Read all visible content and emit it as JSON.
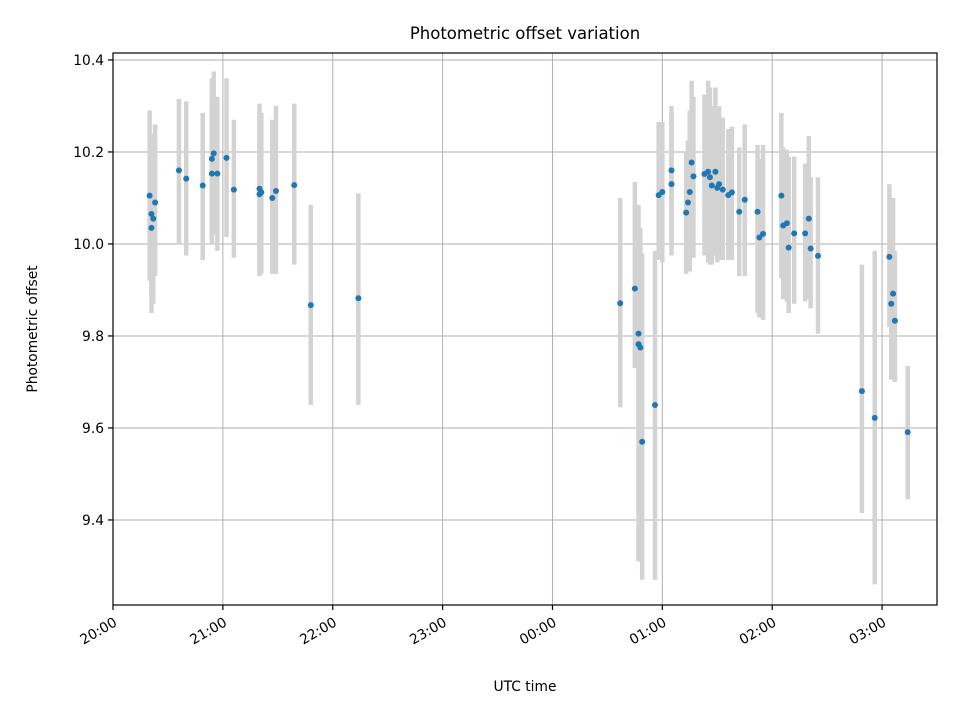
{
  "chart_data": {
    "type": "scatter",
    "title": "Photometric offset variation",
    "xlabel": "UTC time",
    "ylabel": "Photometric offset",
    "x_axis": {
      "ticks": [
        "20:00",
        "21:00",
        "22:00",
        "23:00",
        "00:00",
        "01:00",
        "02:00",
        "03:00"
      ],
      "tick_minutes": [
        0,
        60,
        120,
        180,
        240,
        300,
        360,
        420
      ],
      "range_minutes": [
        0,
        450
      ]
    },
    "y_axis": {
      "ticks": [
        "9.4",
        "9.6",
        "9.8",
        "10.0",
        "10.2",
        "10.4"
      ],
      "tick_values": [
        9.4,
        9.6,
        9.8,
        10.0,
        10.2,
        10.4
      ],
      "range": [
        9.2151,
        10.4151
      ]
    },
    "grid": true,
    "colors": {
      "points": "#1f77b4",
      "errorbars": "#d3d3d3",
      "grid": "#b0b0b0"
    },
    "series": [
      {
        "x": [
          "20:20",
          "20:21",
          "20:21",
          "20:22",
          "20:23",
          "20:36",
          "20:40",
          "20:49",
          "20:54",
          "20:54",
          "20:55",
          "20:57",
          "21:02",
          "21:06",
          "21:20",
          "21:20",
          "21:21",
          "21:27",
          "21:29",
          "21:39",
          "21:48",
          "22:14",
          "00:37",
          "00:45",
          "00:47",
          "00:47",
          "00:48",
          "00:49",
          "00:56",
          "00:58",
          "01:00",
          "01:05",
          "01:05",
          "01:13",
          "01:14",
          "01:15",
          "01:16",
          "01:17",
          "01:23",
          "01:25",
          "01:26",
          "01:27",
          "01:29",
          "01:30",
          "01:31",
          "01:33",
          "01:36",
          "01:38",
          "01:42",
          "01:45",
          "01:52",
          "01:53",
          "01:55",
          "02:05",
          "02:06",
          "02:08",
          "02:09",
          "02:12",
          "02:18",
          "02:20",
          "02:21",
          "02:25",
          "02:49",
          "02:56",
          "03:04",
          "03:05",
          "03:06",
          "03:07",
          "03:14"
        ],
        "y": [
          10.105,
          10.035,
          10.065,
          10.055,
          10.09,
          10.16,
          10.142,
          10.127,
          10.153,
          10.185,
          10.197,
          10.153,
          10.187,
          10.118,
          10.12,
          10.108,
          10.112,
          10.1,
          10.115,
          10.128,
          9.867,
          9.882,
          9.871,
          9.903,
          9.805,
          9.782,
          9.775,
          9.57,
          9.65,
          10.106,
          10.113,
          10.13,
          10.16,
          10.068,
          10.09,
          10.113,
          10.177,
          10.147,
          10.152,
          10.157,
          10.145,
          10.127,
          10.157,
          10.122,
          10.13,
          10.118,
          10.106,
          10.112,
          10.07,
          10.096,
          10.07,
          10.014,
          10.022,
          10.105,
          10.04,
          10.045,
          9.992,
          10.023,
          10.023,
          10.055,
          9.99,
          9.974,
          9.68,
          9.622,
          9.972,
          9.87,
          9.892,
          9.833,
          9.591
        ],
        "err_low": [
          9.92,
          9.85,
          9.89,
          9.87,
          9.93,
          10.0,
          9.975,
          9.965,
          10.0,
          10.01,
          10.02,
          9.985,
          10.015,
          9.97,
          9.93,
          9.935,
          9.935,
          9.935,
          9.935,
          9.955,
          9.65,
          9.65,
          9.645,
          9.73,
          9.58,
          9.31,
          9.31,
          9.27,
          9.27,
          9.965,
          9.96,
          9.975,
          9.995,
          9.935,
          9.95,
          9.94,
          10.0,
          9.97,
          9.975,
          9.96,
          9.955,
          9.955,
          9.975,
          9.96,
          9.965,
          9.965,
          9.965,
          9.965,
          9.93,
          9.93,
          9.85,
          9.84,
          9.835,
          9.925,
          9.88,
          9.875,
          9.85,
          9.87,
          9.875,
          9.88,
          9.86,
          9.805,
          9.415,
          9.26,
          9.82,
          9.705,
          9.72,
          9.7,
          9.445
        ],
        "err_high": [
          10.29,
          10.22,
          10.24,
          10.24,
          10.26,
          10.315,
          10.31,
          10.285,
          10.31,
          10.36,
          10.375,
          10.32,
          10.36,
          10.27,
          10.305,
          10.29,
          10.285,
          10.27,
          10.3,
          10.305,
          10.085,
          10.11,
          10.1,
          10.135,
          10.085,
          10.03,
          10.035,
          9.98,
          9.985,
          10.265,
          10.265,
          10.285,
          10.3,
          10.2,
          10.225,
          10.29,
          10.355,
          10.32,
          10.325,
          10.355,
          10.34,
          10.3,
          10.34,
          10.29,
          10.3,
          10.275,
          10.25,
          10.255,
          10.21,
          10.26,
          10.215,
          10.185,
          10.215,
          10.285,
          10.21,
          10.205,
          10.19,
          10.19,
          10.175,
          10.235,
          10.145,
          10.145,
          9.955,
          9.985,
          10.13,
          10.08,
          10.1,
          9.985,
          9.735
        ]
      }
    ]
  }
}
